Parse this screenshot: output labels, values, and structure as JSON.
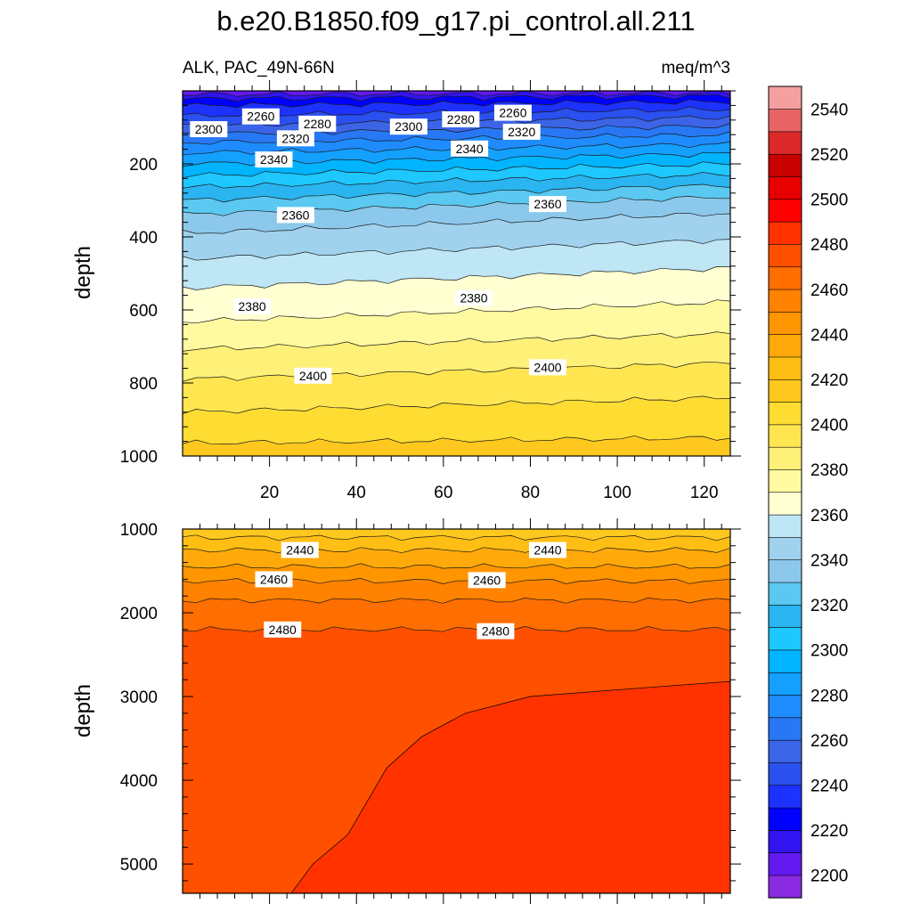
{
  "chart_data": {
    "type": "contour",
    "title": "b.e20.B1850.f09_g17.pi_control.all.211",
    "left_subtitle": "ALK, PAC_49N-66N",
    "right_subtitle": "meq/m^3",
    "colorbar": {
      "levels": [
        2200,
        2210,
        2220,
        2230,
        2240,
        2250,
        2260,
        2270,
        2280,
        2290,
        2300,
        2310,
        2320,
        2330,
        2340,
        2350,
        2360,
        2370,
        2380,
        2390,
        2400,
        2410,
        2420,
        2430,
        2440,
        2450,
        2460,
        2470,
        2480,
        2490,
        2500,
        2510,
        2520,
        2530,
        2540,
        2550
      ],
      "colors": [
        "#8a2be2",
        "#6319f0",
        "#3214f0",
        "#0000ff",
        "#1e32ff",
        "#2a50f0",
        "#3c64e6",
        "#2878f5",
        "#1e8cff",
        "#14a0ff",
        "#00b4ff",
        "#1ec8ff",
        "#2ab4f0",
        "#5ac8f0",
        "#8cc8eb",
        "#a0d2ee",
        "#bee6f5",
        "#ffffd2",
        "#fffaa0",
        "#fff078",
        "#ffe650",
        "#ffdc32",
        "#ffc81e",
        "#ffbe14",
        "#ffaa0a",
        "#ff9600",
        "#ff8200",
        "#ff6e00",
        "#ff5000",
        "#ff3200",
        "#ff0000",
        "#e60000",
        "#c80000",
        "#dc2828",
        "#e86464",
        "#f5a0a0"
      ],
      "tick_labels": [
        "2200",
        "2220",
        "2240",
        "2260",
        "2280",
        "2300",
        "2320",
        "2340",
        "2360",
        "2380",
        "2400",
        "2420",
        "2440",
        "2460",
        "2480",
        "2500",
        "2520",
        "2540"
      ]
    },
    "top_panel": {
      "xlim": [
        0,
        126
      ],
      "ylim": [
        1000,
        0
      ],
      "ylabel": "depth",
      "xticks": [
        20,
        40,
        60,
        80,
        100,
        120
      ],
      "xtick_labels": [
        "20",
        "40",
        "60",
        "80",
        "100",
        "120"
      ],
      "yticks": [
        200,
        400,
        600,
        800,
        1000
      ],
      "ytick_labels": [
        "200",
        "400",
        "600",
        "800",
        "1000"
      ],
      "contours": [
        {
          "level": 2220,
          "depth_left": 10,
          "depth_right": 6
        },
        {
          "level": 2230,
          "depth_left": 22,
          "depth_right": 14
        },
        {
          "level": 2240,
          "depth_left": 40,
          "depth_right": 30
        },
        {
          "level": 2250,
          "depth_left": 68,
          "depth_right": 50
        },
        {
          "level": 2260,
          "depth_left": 95,
          "depth_right": 72
        },
        {
          "level": 2270,
          "depth_left": 118,
          "depth_right": 96
        },
        {
          "level": 2280,
          "depth_left": 142,
          "depth_right": 120
        },
        {
          "level": 2290,
          "depth_left": 170,
          "depth_right": 146
        },
        {
          "level": 2300,
          "depth_left": 200,
          "depth_right": 172
        },
        {
          "level": 2310,
          "depth_left": 232,
          "depth_right": 200
        },
        {
          "level": 2320,
          "depth_left": 264,
          "depth_right": 228
        },
        {
          "level": 2330,
          "depth_left": 300,
          "depth_right": 258
        },
        {
          "level": 2340,
          "depth_left": 338,
          "depth_right": 290
        },
        {
          "level": 2350,
          "depth_left": 390,
          "depth_right": 335
        },
        {
          "level": 2360,
          "depth_left": 460,
          "depth_right": 408
        },
        {
          "level": 2370,
          "depth_left": 540,
          "depth_right": 485
        },
        {
          "level": 2380,
          "depth_left": 632,
          "depth_right": 578
        },
        {
          "level": 2390,
          "depth_left": 708,
          "depth_right": 665
        },
        {
          "level": 2400,
          "depth_left": 790,
          "depth_right": 745
        },
        {
          "level": 2410,
          "depth_left": 880,
          "depth_right": 840
        },
        {
          "level": 2420,
          "depth_left": 965,
          "depth_right": 950
        }
      ],
      "labels": [
        {
          "text": "2260",
          "x": 18,
          "depth": 70
        },
        {
          "text": "2280",
          "x": 31,
          "depth": 90
        },
        {
          "text": "2300",
          "x": 6,
          "depth": 105
        },
        {
          "text": "2300",
          "x": 52,
          "depth": 98
        },
        {
          "text": "2280",
          "x": 64,
          "depth": 78
        },
        {
          "text": "2260",
          "x": 76,
          "depth": 60
        },
        {
          "text": "2320",
          "x": 26,
          "depth": 130
        },
        {
          "text": "2320",
          "x": 78,
          "depth": 112
        },
        {
          "text": "2340",
          "x": 21,
          "depth": 188
        },
        {
          "text": "2340",
          "x": 66,
          "depth": 158
        },
        {
          "text": "2360",
          "x": 26,
          "depth": 340
        },
        {
          "text": "2360",
          "x": 84,
          "depth": 310
        },
        {
          "text": "2380",
          "x": 16,
          "depth": 590
        },
        {
          "text": "2380",
          "x": 67,
          "depth": 567
        },
        {
          "text": "2400",
          "x": 30,
          "depth": 780
        },
        {
          "text": "2400",
          "x": 84,
          "depth": 757
        }
      ]
    },
    "bottom_panel": {
      "xlim": [
        0,
        126
      ],
      "ylim": [
        5350,
        1000
      ],
      "ylabel": "depth",
      "yticks": [
        1000,
        2000,
        3000,
        4000,
        5000
      ],
      "ytick_labels": [
        "1000",
        "2000",
        "3000",
        "4000",
        "5000"
      ],
      "contours": [
        {
          "level": 2430,
          "depth_left": 1100,
          "depth_right": 1100
        },
        {
          "level": 2440,
          "depth_left": 1250,
          "depth_right": 1250
        },
        {
          "level": 2450,
          "depth_left": 1450,
          "depth_right": 1450
        },
        {
          "level": 2460,
          "depth_left": 1620,
          "depth_right": 1620
        },
        {
          "level": 2470,
          "depth_left": 1850,
          "depth_right": 1850
        },
        {
          "level": 2480,
          "depth_left": 2200,
          "depth_right": 2200
        }
      ],
      "deep_region": {
        "level": 2490,
        "boundary": [
          [
            25,
            5350
          ],
          [
            30,
            5000
          ],
          [
            38,
            4650
          ],
          [
            47,
            3850
          ],
          [
            55,
            3480
          ],
          [
            65,
            3200
          ],
          [
            80,
            3000
          ],
          [
            95,
            2940
          ],
          [
            110,
            2880
          ],
          [
            126,
            2820
          ]
        ]
      },
      "labels": [
        {
          "text": "2440",
          "x": 27,
          "depth": 1250
        },
        {
          "text": "2440",
          "x": 84,
          "depth": 1250
        },
        {
          "text": "2460",
          "x": 21,
          "depth": 1600
        },
        {
          "text": "2460",
          "x": 70,
          "depth": 1610
        },
        {
          "text": "2480",
          "x": 23,
          "depth": 2200
        },
        {
          "text": "2480",
          "x": 72,
          "depth": 2220
        }
      ]
    }
  }
}
